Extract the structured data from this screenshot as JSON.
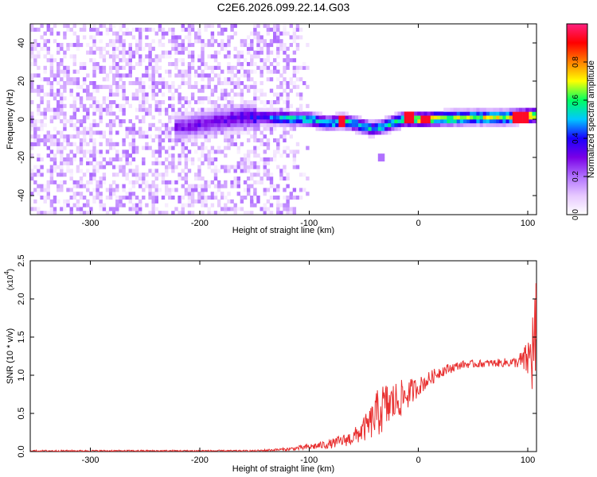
{
  "title": "C2E6.2026.099.22.14.G03",
  "chart_data": [
    {
      "type": "heatmap",
      "xlabel": "Height of straight line (km)",
      "ylabel": "Frequency (Hz)",
      "xlim": [
        -355,
        108
      ],
      "ylim": [
        -50,
        50
      ],
      "x_ticks": [
        -300,
        -200,
        -100,
        0,
        100
      ],
      "y_ticks": [
        -40,
        -20,
        0,
        20,
        40
      ],
      "colorbar": {
        "label": "Normalized spectral amplitude",
        "range": [
          0,
          1
        ],
        "ticks": [
          0.0,
          0.2,
          0.4,
          0.6,
          0.8
        ]
      },
      "colormap": [
        "#ffffff",
        "#e6c8ff",
        "#b070ff",
        "#7a00e6",
        "#1a00ff",
        "#00c8ff",
        "#00ff60",
        "#ffff00",
        "#ff8000",
        "#ff0000",
        "#ff2080"
      ],
      "noise_region": {
        "x_range": [
          -355,
          -125
        ],
        "freq_range": [
          -50,
          50
        ],
        "amplitude_range": [
          0.0,
          0.15
        ]
      },
      "ridge": {
        "points": [
          {
            "x": -215,
            "freq": -4,
            "amp": 0.3
          },
          {
            "x": -160,
            "freq": 1.5,
            "amp": 0.35
          },
          {
            "x": -140,
            "freq": 1,
            "amp": 0.45
          },
          {
            "x": -120,
            "freq": 0.5,
            "amp": 0.55
          },
          {
            "x": -100,
            "freq": 0,
            "amp": 0.55
          },
          {
            "x": -85,
            "freq": -2,
            "amp": 0.55
          },
          {
            "x": -70,
            "freq": -1,
            "amp": 0.6
          },
          {
            "x": -55,
            "freq": -3,
            "amp": 0.55
          },
          {
            "x": -45,
            "freq": -5,
            "amp": 0.55
          },
          {
            "x": -35,
            "freq": -4,
            "amp": 0.55
          },
          {
            "x": -25,
            "freq": -2,
            "amp": 0.6
          },
          {
            "x": -15,
            "freq": 0,
            "amp": 0.7
          },
          {
            "x": 0,
            "freq": 0,
            "amp": 0.75
          },
          {
            "x": 20,
            "freq": 0.5,
            "amp": 0.7
          },
          {
            "x": 50,
            "freq": 1,
            "amp": 0.7
          },
          {
            "x": 80,
            "freq": 1,
            "amp": 0.7
          },
          {
            "x": 100,
            "freq": 2,
            "amp": 0.75
          },
          {
            "x": 108,
            "freq": 2,
            "amp": 0.7
          }
        ]
      },
      "hot_spots": [
        {
          "x": -72,
          "freq": -1
        },
        {
          "x": -10,
          "freq": 1
        },
        {
          "x": 5,
          "freq": 0
        },
        {
          "x": 88,
          "freq": 1
        },
        {
          "x": 95,
          "freq": 1
        }
      ],
      "spur": {
        "x": -35,
        "freq": -20
      }
    },
    {
      "type": "line",
      "xlabel": "Height of straight line (km)",
      "ylabel": "SNR (10 * v/v)",
      "multiplier": "(x10",
      "multiplier_exp": "4",
      "xlim": [
        -355,
        108
      ],
      "ylim": [
        0,
        2.5
      ],
      "x_ticks": [
        -300,
        -200,
        -100,
        0,
        100
      ],
      "y_ticks": [
        0.0,
        0.5,
        1.0,
        1.5,
        2.0,
        2.5
      ],
      "color": "#e83030",
      "envelope": [
        {
          "x": -355,
          "mean": 0.01,
          "noise": 0.01
        },
        {
          "x": -150,
          "mean": 0.01,
          "noise": 0.01
        },
        {
          "x": -120,
          "mean": 0.03,
          "noise": 0.02
        },
        {
          "x": -100,
          "mean": 0.06,
          "noise": 0.04
        },
        {
          "x": -80,
          "mean": 0.1,
          "noise": 0.06
        },
        {
          "x": -60,
          "mean": 0.18,
          "noise": 0.1
        },
        {
          "x": -45,
          "mean": 0.35,
          "noise": 0.2
        },
        {
          "x": -35,
          "mean": 0.55,
          "noise": 0.35
        },
        {
          "x": -25,
          "mean": 0.62,
          "noise": 0.3
        },
        {
          "x": -10,
          "mean": 0.75,
          "noise": 0.2
        },
        {
          "x": 0,
          "mean": 0.85,
          "noise": 0.12
        },
        {
          "x": 20,
          "mean": 1.05,
          "noise": 0.08
        },
        {
          "x": 40,
          "mean": 1.14,
          "noise": 0.05
        },
        {
          "x": 70,
          "mean": 1.16,
          "noise": 0.05
        },
        {
          "x": 90,
          "mean": 1.17,
          "noise": 0.07
        },
        {
          "x": 100,
          "mean": 1.2,
          "noise": 0.25
        },
        {
          "x": 104,
          "mean": 1.3,
          "noise": 0.6
        },
        {
          "x": 108,
          "mean": 1.5,
          "noise": 0.9
        }
      ]
    }
  ]
}
